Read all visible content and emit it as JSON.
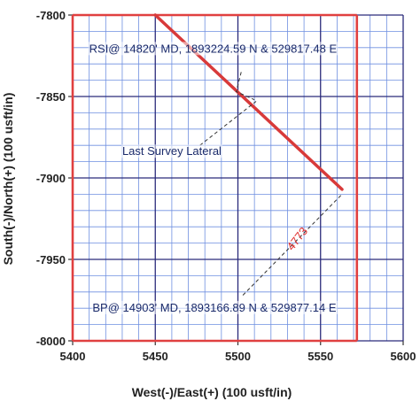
{
  "chart_data": {
    "type": "line",
    "xlabel": "West(-)/East(+) (100 usft/in)",
    "ylabel": "South(-)/North(+) (100 usft/in)",
    "xlim": [
      5400,
      5600
    ],
    "ylim": [
      -8000,
      -7800
    ],
    "x_ticks": [
      "5400",
      "5450",
      "5500",
      "5550",
      "5600"
    ],
    "y_ticks": [
      "-7800",
      "-7850",
      "-7900",
      "-7950",
      "-8000"
    ],
    "grid": true,
    "colors": {
      "major_grid": "#2a2a7a",
      "minor_grid": "#6f8fe0",
      "boundary": "#e04040",
      "wellpath": "#d83a3a",
      "leader": "#333333"
    },
    "series": [
      {
        "x": [
          5450,
          5563
        ],
        "y": [
          -7800,
          -7907
        ]
      }
    ],
    "boundary_lines": [
      {
        "x": [
          5400,
          5400
        ],
        "y": [
          -7800,
          -8000
        ]
      },
      {
        "x": [
          5400,
          5572
        ],
        "y": [
          -7800,
          -7800
        ]
      },
      {
        "x": [
          5400,
          5572
        ],
        "y": [
          -8000,
          -8000
        ]
      },
      {
        "x": [
          5572,
          5572
        ],
        "y": [
          -7800,
          -8000
        ]
      }
    ],
    "annotations": [
      {
        "text": "RSI@ 14820' MD, 1893224.59 N & 529817.48 E",
        "x": 5410,
        "y": -7823,
        "color": "#1a2a6a",
        "leader": [
          [
            5502,
            -7835
          ],
          [
            5499,
            -7847
          ],
          [
            5510,
            -7852
          ]
        ]
      },
      {
        "text": "Last Survey Lateral",
        "x": 5430,
        "y": -7886,
        "color": "#1a2a6a",
        "leader": [
          [
            5477,
            -7880
          ],
          [
            5511,
            -7853
          ]
        ]
      },
      {
        "text": "4773",
        "x": 5533,
        "y": -7945,
        "rotate": -52,
        "color": "#e03030"
      },
      {
        "text": "BP@ 14903' MD, 1893166.89 N & 529877.14 E",
        "x": 5412,
        "y": -7982,
        "color": "#1a2a6a",
        "leader": [
          [
            5503,
            -7972
          ],
          [
            5563,
            -7910
          ]
        ]
      }
    ]
  }
}
